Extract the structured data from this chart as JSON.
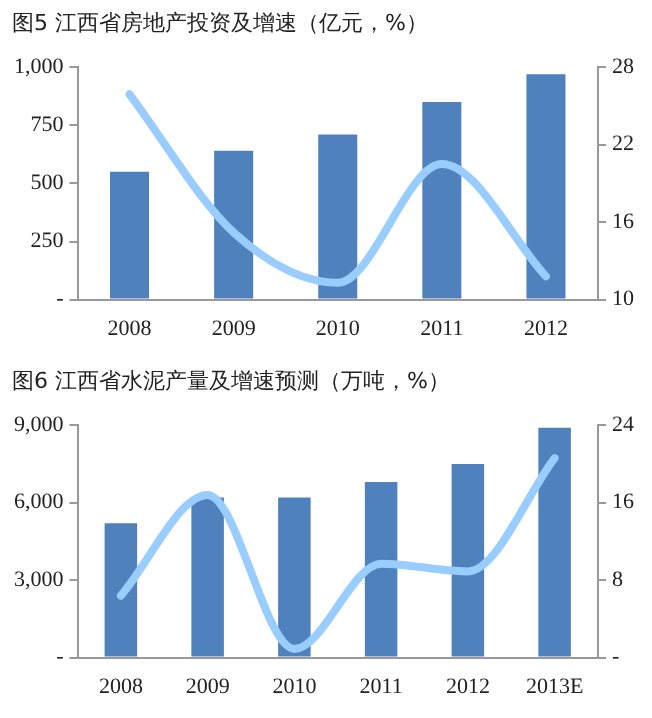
{
  "chart_data": [
    {
      "type": "bar",
      "title": "图5 江西省房地产投资及增速（亿元，%）",
      "categories": [
        "2008",
        "2009",
        "2010",
        "2011",
        "2012"
      ],
      "series": [
        {
          "color": "#4f81bd",
          "values": [
            550,
            640,
            710,
            850,
            970
          ]
        },
        {
          "type": "line",
          "axis": "y2",
          "color": "#99ccff",
          "values": [
            25.9,
            15.2,
            11.3,
            20.5,
            11.8
          ]
        }
      ],
      "ylim": [
        0,
        1000
      ],
      "yticks": [
        {
          "value": 0,
          "label": "-"
        },
        250,
        500,
        750,
        {
          "value": 1000,
          "label": "1,000"
        }
      ],
      "y2lim": [
        10,
        28
      ],
      "y2ticks": [
        10,
        16,
        22,
        28
      ],
      "marker": "none"
    },
    {
      "type": "bar",
      "title": "图6 江西省水泥产量及增速预测（万吨，%）",
      "categories": [
        "2008",
        "2009",
        "2010",
        "2011",
        "2012",
        "2013E"
      ],
      "series": [
        {
          "color": "#4f81bd",
          "values": [
            5200,
            6200,
            6200,
            6800,
            7500,
            8900
          ]
        },
        {
          "type": "line",
          "axis": "y2",
          "color": "#99ccff",
          "values": [
            6.4,
            16.8,
            0.9,
            9.7,
            8.9,
            20.6
          ]
        }
      ],
      "ylim": [
        0,
        9000
      ],
      "yticks": [
        {
          "value": 0,
          "label": "-"
        },
        {
          "value": 3000,
          "label": "3,000"
        },
        {
          "value": 6000,
          "label": "6,000"
        },
        {
          "value": 9000,
          "label": "9,000"
        }
      ],
      "y2lim": [
        0,
        24
      ],
      "y2ticks": [
        {
          "value": 0,
          "label": "-"
        },
        8,
        16,
        24
      ],
      "marker": "none"
    }
  ]
}
